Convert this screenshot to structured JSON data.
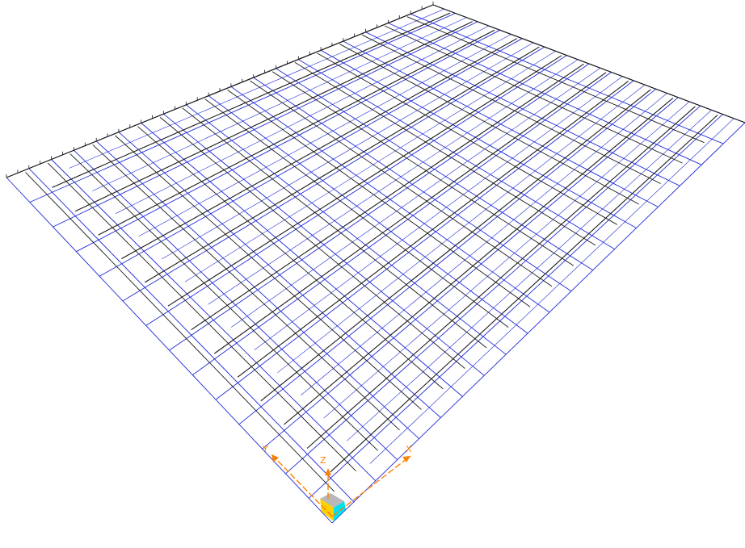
{
  "viewport": {
    "background": "#ffffff",
    "model": {
      "description_icon": "structural-mesh-wireframe-icon",
      "colors": {
        "beam_lines": "#1a1a1a",
        "grid_lines": "#1f2bd6",
        "axis": "#ff8000"
      },
      "grid": {
        "columns": 19,
        "rows": 14
      },
      "secondary_grid": {
        "columns": 19,
        "rows": 14
      }
    },
    "axis_triad": {
      "x_label": "X",
      "y_label": "Y",
      "z_label": "Z",
      "cube_colors": {
        "top": "#b8b8b8",
        "left": "#ffd000",
        "right": "#00e0f0",
        "front": "#888888"
      }
    }
  }
}
